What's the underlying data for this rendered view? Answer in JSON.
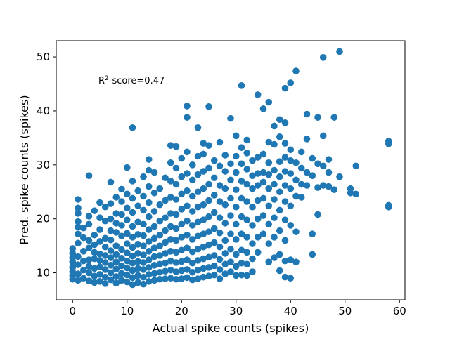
{
  "chart_data": {
    "type": "scatter",
    "xlabel": "Actual spike counts (spikes)",
    "ylabel": "Pred. spike counts (spikes)",
    "xlim": [
      -3,
      61
    ],
    "ylim": [
      5,
      53
    ],
    "xticks": [
      0,
      10,
      20,
      30,
      40,
      50,
      60
    ],
    "yticks": [
      10,
      20,
      30,
      40,
      50
    ],
    "xtick_labels": [
      "0",
      "10",
      "20",
      "30",
      "40",
      "50",
      "60"
    ],
    "ytick_labels": [
      "10",
      "20",
      "30",
      "40",
      "50"
    ],
    "grid": false,
    "marker_color": "#1f77b4",
    "annotation": {
      "prefix": "R",
      "superscript": "2",
      "suffix": "-score=0.47",
      "x": 5,
      "y": 45.4
    },
    "points": [
      [
        0,
        8.8
      ],
      [
        0,
        9.5
      ],
      [
        0,
        10.2
      ],
      [
        0,
        11.0
      ],
      [
        0,
        12.0
      ],
      [
        0,
        12.8
      ],
      [
        0,
        13.6
      ],
      [
        0,
        14.5
      ],
      [
        1,
        8.6
      ],
      [
        1,
        9.8
      ],
      [
        1,
        11.5
      ],
      [
        1,
        13.0
      ],
      [
        1,
        15.5
      ],
      [
        1,
        17.2
      ],
      [
        1,
        18.5
      ],
      [
        1,
        19.5
      ],
      [
        1,
        21.0
      ],
      [
        1,
        22.0
      ],
      [
        1,
        23.6
      ],
      [
        2,
        9.0
      ],
      [
        2,
        10.5
      ],
      [
        2,
        12.2
      ],
      [
        2,
        14.0
      ],
      [
        2,
        16.5
      ],
      [
        2,
        18.3
      ],
      [
        3,
        8.5
      ],
      [
        3,
        10.0
      ],
      [
        3,
        11.2
      ],
      [
        3,
        12.4
      ],
      [
        3,
        14.6
      ],
      [
        3,
        16.0
      ],
      [
        3,
        19.0
      ],
      [
        3,
        20.5
      ],
      [
        3,
        28.0
      ],
      [
        4,
        8.2
      ],
      [
        4,
        9.4
      ],
      [
        4,
        10.8
      ],
      [
        4,
        12.6
      ],
      [
        4,
        13.8
      ],
      [
        4,
        15.2
      ],
      [
        4,
        17.0
      ],
      [
        4,
        21.5
      ],
      [
        5,
        8.4
      ],
      [
        5,
        9.7
      ],
      [
        5,
        11.1
      ],
      [
        5,
        12.3
      ],
      [
        5,
        13.5
      ],
      [
        5,
        15.8
      ],
      [
        5,
        18.0
      ],
      [
        5,
        20.2
      ],
      [
        5,
        23.0
      ],
      [
        6,
        8.0
      ],
      [
        6,
        9.2
      ],
      [
        6,
        10.6
      ],
      [
        6,
        11.9
      ],
      [
        6,
        13.2
      ],
      [
        6,
        14.8
      ],
      [
        6,
        16.4
      ],
      [
        6,
        19.6
      ],
      [
        6,
        22.2
      ],
      [
        7,
        8.7
      ],
      [
        7,
        10.0
      ],
      [
        7,
        11.4
      ],
      [
        7,
        12.8
      ],
      [
        7,
        14.1
      ],
      [
        7,
        16.1
      ],
      [
        7,
        17.8
      ],
      [
        7,
        20.0
      ],
      [
        7,
        22.8
      ],
      [
        7,
        26.8
      ],
      [
        8,
        8.1
      ],
      [
        8,
        9.3
      ],
      [
        8,
        10.7
      ],
      [
        8,
        12.0
      ],
      [
        8,
        13.4
      ],
      [
        8,
        15.0
      ],
      [
        8,
        17.5
      ],
      [
        8,
        19.2
      ],
      [
        8,
        21.0
      ],
      [
        8,
        24.0
      ],
      [
        9,
        8.6
      ],
      [
        9,
        9.9
      ],
      [
        9,
        11.3
      ],
      [
        9,
        12.7
      ],
      [
        9,
        14.3
      ],
      [
        9,
        16.8
      ],
      [
        9,
        18.8
      ],
      [
        9,
        20.8
      ],
      [
        9,
        23.2
      ],
      [
        9,
        25.5
      ],
      [
        10,
        8.3
      ],
      [
        10,
        9.6
      ],
      [
        10,
        10.9
      ],
      [
        10,
        12.2
      ],
      [
        10,
        13.7
      ],
      [
        10,
        15.4
      ],
      [
        10,
        17.3
      ],
      [
        10,
        19.8
      ],
      [
        10,
        22.0
      ],
      [
        10,
        24.6
      ],
      [
        10,
        29.5
      ],
      [
        11,
        7.8
      ],
      [
        11,
        9.1
      ],
      [
        11,
        10.4
      ],
      [
        11,
        11.8
      ],
      [
        11,
        13.1
      ],
      [
        11,
        14.7
      ],
      [
        11,
        16.6
      ],
      [
        11,
        18.6
      ],
      [
        11,
        21.2
      ],
      [
        11,
        23.8
      ],
      [
        11,
        27.0
      ],
      [
        11,
        36.9
      ],
      [
        12,
        8.2
      ],
      [
        12,
        9.5
      ],
      [
        12,
        10.8
      ],
      [
        12,
        12.1
      ],
      [
        12,
        13.6
      ],
      [
        12,
        15.3
      ],
      [
        12,
        17.1
      ],
      [
        12,
        19.4
      ],
      [
        12,
        22.4
      ],
      [
        12,
        25.2
      ],
      [
        13,
        7.9
      ],
      [
        13,
        9.2
      ],
      [
        13,
        10.6
      ],
      [
        13,
        11.9
      ],
      [
        13,
        13.3
      ],
      [
        13,
        15.0
      ],
      [
        13,
        16.9
      ],
      [
        13,
        19.0
      ],
      [
        13,
        21.6
      ],
      [
        13,
        24.2
      ],
      [
        13,
        27.8
      ],
      [
        14,
        8.4
      ],
      [
        14,
        9.7
      ],
      [
        14,
        11.0
      ],
      [
        14,
        12.4
      ],
      [
        14,
        14.0
      ],
      [
        14,
        15.8
      ],
      [
        14,
        18.0
      ],
      [
        14,
        20.4
      ],
      [
        14,
        23.0
      ],
      [
        14,
        26.0
      ],
      [
        14,
        29.0
      ],
      [
        14,
        31.0
      ],
      [
        15,
        8.6
      ],
      [
        15,
        9.9
      ],
      [
        15,
        11.4
      ],
      [
        15,
        13.0
      ],
      [
        15,
        14.6
      ],
      [
        15,
        16.4
      ],
      [
        15,
        18.6
      ],
      [
        15,
        21.4
      ],
      [
        15,
        24.8
      ],
      [
        15,
        28.6
      ],
      [
        16,
        8.8
      ],
      [
        16,
        10.1
      ],
      [
        16,
        11.6
      ],
      [
        16,
        13.2
      ],
      [
        16,
        15.0
      ],
      [
        16,
        17.0
      ],
      [
        16,
        19.6
      ],
      [
        16,
        22.6
      ],
      [
        16,
        25.6
      ],
      [
        17,
        8.9
      ],
      [
        17,
        10.3
      ],
      [
        17,
        11.8
      ],
      [
        17,
        13.6
      ],
      [
        17,
        15.6
      ],
      [
        17,
        17.8
      ],
      [
        17,
        20.2
      ],
      [
        17,
        23.4
      ],
      [
        17,
        27.6
      ],
      [
        18,
        9.0
      ],
      [
        18,
        10.5
      ],
      [
        18,
        12.2
      ],
      [
        18,
        14.0
      ],
      [
        18,
        16.2
      ],
      [
        18,
        18.6
      ],
      [
        18,
        21.0
      ],
      [
        18,
        24.0
      ],
      [
        18,
        27.0
      ],
      [
        18,
        30.4
      ],
      [
        18,
        33.6
      ],
      [
        19,
        8.8
      ],
      [
        19,
        10.2
      ],
      [
        19,
        11.9
      ],
      [
        19,
        13.8
      ],
      [
        19,
        16.0
      ],
      [
        19,
        18.2
      ],
      [
        19,
        20.8
      ],
      [
        19,
        23.6
      ],
      [
        19,
        26.4
      ],
      [
        19,
        29.4
      ],
      [
        19,
        33.4
      ],
      [
        20,
        8.9
      ],
      [
        20,
        10.4
      ],
      [
        20,
        12.1
      ],
      [
        20,
        14.2
      ],
      [
        20,
        16.6
      ],
      [
        20,
        19.0
      ],
      [
        20,
        21.8
      ],
      [
        20,
        24.6
      ],
      [
        20,
        27.8
      ],
      [
        20,
        31.2
      ],
      [
        21,
        9.1
      ],
      [
        21,
        10.6
      ],
      [
        21,
        12.4
      ],
      [
        21,
        14.6
      ],
      [
        21,
        17.0
      ],
      [
        21,
        19.6
      ],
      [
        21,
        22.4
      ],
      [
        21,
        25.2
      ],
      [
        21,
        28.4
      ],
      [
        21,
        32.4
      ],
      [
        21,
        38.8
      ],
      [
        21,
        40.9
      ],
      [
        22,
        8.7
      ],
      [
        22,
        10.1
      ],
      [
        22,
        11.8
      ],
      [
        22,
        13.9
      ],
      [
        22,
        16.2
      ],
      [
        22,
        18.8
      ],
      [
        22,
        21.4
      ],
      [
        22,
        24.2
      ],
      [
        22,
        27.2
      ],
      [
        22,
        30.0
      ],
      [
        23,
        8.9
      ],
      [
        23,
        10.5
      ],
      [
        23,
        12.3
      ],
      [
        23,
        14.4
      ],
      [
        23,
        16.8
      ],
      [
        23,
        19.4
      ],
      [
        23,
        22.2
      ],
      [
        23,
        25.0
      ],
      [
        23,
        28.2
      ],
      [
        23,
        31.6
      ],
      [
        23,
        36.9
      ],
      [
        24,
        9.2
      ],
      [
        24,
        10.8
      ],
      [
        24,
        12.6
      ],
      [
        24,
        14.8
      ],
      [
        24,
        17.2
      ],
      [
        24,
        19.8
      ],
      [
        24,
        22.6
      ],
      [
        24,
        25.6
      ],
      [
        24,
        28.8
      ],
      [
        24,
        32.0
      ],
      [
        24,
        34.0
      ],
      [
        25,
        9.4
      ],
      [
        25,
        11.0
      ],
      [
        25,
        12.9
      ],
      [
        25,
        15.2
      ],
      [
        25,
        17.6
      ],
      [
        25,
        20.4
      ],
      [
        25,
        23.4
      ],
      [
        25,
        26.4
      ],
      [
        25,
        29.4
      ],
      [
        25,
        33.6
      ],
      [
        25,
        40.8
      ],
      [
        26,
        9.6
      ],
      [
        26,
        11.3
      ],
      [
        26,
        13.2
      ],
      [
        26,
        15.6
      ],
      [
        26,
        18.2
      ],
      [
        26,
        21.2
      ],
      [
        26,
        24.4
      ],
      [
        26,
        27.6
      ],
      [
        26,
        30.8
      ],
      [
        27,
        8.9
      ],
      [
        27,
        10.6
      ],
      [
        27,
        12.5
      ],
      [
        27,
        14.8
      ],
      [
        27,
        17.4
      ],
      [
        27,
        20.2
      ],
      [
        27,
        23.2
      ],
      [
        27,
        26.2
      ],
      [
        27,
        29.8
      ],
      [
        27,
        34.2
      ],
      [
        28,
        9.8
      ],
      [
        28,
        11.6
      ],
      [
        28,
        13.6
      ],
      [
        28,
        16.0
      ],
      [
        28,
        19.2
      ],
      [
        28,
        22.6
      ],
      [
        28,
        25.6
      ],
      [
        28,
        28.8
      ],
      [
        28,
        31.8
      ],
      [
        29,
        10.2
      ],
      [
        29,
        12.0
      ],
      [
        29,
        14.4
      ],
      [
        29,
        17.2
      ],
      [
        29,
        20.6
      ],
      [
        29,
        23.8
      ],
      [
        29,
        27.2
      ],
      [
        29,
        30.2
      ],
      [
        29,
        38.6
      ],
      [
        30,
        9.5
      ],
      [
        30,
        11.2
      ],
      [
        30,
        13.4
      ],
      [
        30,
        16.2
      ],
      [
        30,
        19.0
      ],
      [
        30,
        22.2
      ],
      [
        30,
        25.4
      ],
      [
        30,
        28.6
      ],
      [
        30,
        31.6
      ],
      [
        30,
        35.4
      ],
      [
        31,
        9.6
      ],
      [
        31,
        11.8
      ],
      [
        31,
        14.2
      ],
      [
        31,
        17.2
      ],
      [
        31,
        20.4
      ],
      [
        31,
        23.8
      ],
      [
        31,
        27.0
      ],
      [
        31,
        30.2
      ],
      [
        31,
        33.2
      ],
      [
        31,
        44.7
      ],
      [
        32,
        9.5
      ],
      [
        32,
        11.6
      ],
      [
        32,
        13.8
      ],
      [
        32,
        16.6
      ],
      [
        32,
        19.8
      ],
      [
        32,
        23.2
      ],
      [
        32,
        26.4
      ],
      [
        32,
        29.2
      ],
      [
        32,
        32.2
      ],
      [
        32,
        34.6
      ],
      [
        33,
        10.2
      ],
      [
        33,
        12.6
      ],
      [
        33,
        15.4
      ],
      [
        33,
        18.8
      ],
      [
        33,
        22.2
      ],
      [
        33,
        25.6
      ],
      [
        33,
        28.0
      ],
      [
        33,
        30.8
      ],
      [
        34,
        13.8
      ],
      [
        34,
        16.6
      ],
      [
        34,
        20.0
      ],
      [
        34,
        23.4
      ],
      [
        34,
        26.2
      ],
      [
        34,
        28.4
      ],
      [
        34,
        31.4
      ],
      [
        34,
        43.0
      ],
      [
        35,
        17.2
      ],
      [
        35,
        20.6
      ],
      [
        35,
        23.8
      ],
      [
        35,
        26.8
      ],
      [
        35,
        28.6
      ],
      [
        35,
        32.0
      ],
      [
        35,
        40.4
      ],
      [
        36,
        12.0
      ],
      [
        36,
        15.4
      ],
      [
        36,
        19.0
      ],
      [
        36,
        22.4
      ],
      [
        36,
        25.6
      ],
      [
        36,
        28.2
      ],
      [
        36,
        30.4
      ],
      [
        36,
        34.2
      ],
      [
        36,
        41.6
      ],
      [
        37,
        12.8
      ],
      [
        37,
        16.6
      ],
      [
        37,
        20.2
      ],
      [
        37,
        23.6
      ],
      [
        37,
        26.4
      ],
      [
        37,
        29.0
      ],
      [
        37,
        33.8
      ],
      [
        37,
        37.2
      ],
      [
        38,
        10.4
      ],
      [
        38,
        13.4
      ],
      [
        38,
        17.8
      ],
      [
        38,
        21.6
      ],
      [
        38,
        25.0
      ],
      [
        38,
        27.8
      ],
      [
        38,
        30.6
      ],
      [
        38,
        35.2
      ],
      [
        38,
        38.4
      ],
      [
        39,
        9.2
      ],
      [
        39,
        12.2
      ],
      [
        39,
        16.0
      ],
      [
        39,
        19.8
      ],
      [
        39,
        23.2
      ],
      [
        39,
        26.2
      ],
      [
        39,
        28.8
      ],
      [
        39,
        31.4
      ],
      [
        39,
        34.0
      ],
      [
        39,
        37.8
      ],
      [
        39,
        44.2
      ],
      [
        40,
        9.0
      ],
      [
        40,
        12.4
      ],
      [
        40,
        18.8
      ],
      [
        40,
        22.4
      ],
      [
        40,
        25.6
      ],
      [
        40,
        28.4
      ],
      [
        40,
        30.8
      ],
      [
        40,
        32.8
      ],
      [
        40,
        45.2
      ],
      [
        41,
        12.0
      ],
      [
        41,
        17.6
      ],
      [
        41,
        24.2
      ],
      [
        41,
        27.2
      ],
      [
        41,
        30.4
      ],
      [
        41,
        47.4
      ],
      [
        42,
        24.0
      ],
      [
        42,
        26.4
      ],
      [
        42,
        29.4
      ],
      [
        42,
        32.4
      ],
      [
        43,
        26.2
      ],
      [
        43,
        28.6
      ],
      [
        43,
        34.8
      ],
      [
        43,
        39.4
      ],
      [
        44,
        13.4
      ],
      [
        44,
        17.2
      ],
      [
        44,
        28.0
      ],
      [
        44,
        31.2
      ],
      [
        45,
        20.8
      ],
      [
        45,
        25.8
      ],
      [
        45,
        30.2
      ],
      [
        45,
        38.8
      ],
      [
        46,
        26.2
      ],
      [
        46,
        29.8
      ],
      [
        46,
        35.4
      ],
      [
        46,
        49.9
      ],
      [
        47,
        26.0
      ],
      [
        47,
        28.6
      ],
      [
        47,
        31.0
      ],
      [
        48,
        25.4
      ],
      [
        48,
        38.8
      ],
      [
        49,
        27.8
      ],
      [
        49,
        51.0
      ],
      [
        51,
        24.8
      ],
      [
        51,
        25.6
      ],
      [
        52,
        24.6
      ],
      [
        52,
        29.8
      ],
      [
        58,
        22.2
      ],
      [
        58,
        22.5
      ],
      [
        58,
        33.9
      ],
      [
        58,
        34.4
      ]
    ]
  }
}
